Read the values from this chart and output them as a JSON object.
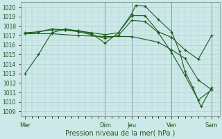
{
  "xlabel": "Pression niveau de la mer( hPa )",
  "ylim": [
    1008.5,
    1020.5
  ],
  "background_color": "#cce8e8",
  "grid_color": "#aacccc",
  "line_color": "#1a5c1a",
  "day_labels": [
    "Mer",
    "Dim",
    "Jeu",
    "Ven",
    "Sam"
  ],
  "day_positions": [
    0,
    3.0,
    4.0,
    5.5,
    7.0
  ],
  "vline_positions": [
    3.0,
    4.0,
    5.5,
    7.0
  ],
  "vline_color": "#446644",
  "lines": [
    {
      "x": [
        0,
        0.5,
        1.0,
        1.5,
        2.0,
        2.5,
        3.0,
        3.5,
        4.0,
        4.15,
        4.5,
        5.0,
        5.5,
        5.8,
        6.0,
        6.3,
        6.6,
        7.0
      ],
      "y": [
        1013,
        1015,
        1017.3,
        1017.7,
        1017.5,
        1017.2,
        1016.2,
        1017.3,
        1019.3,
        1020.2,
        1020.1,
        1018.7,
        1017.4,
        1015.3,
        1013.2,
        1011.5,
        1009.5,
        1011.5
      ]
    },
    {
      "x": [
        0,
        0.5,
        1.0,
        1.5,
        2.0,
        2.5,
        3.0,
        3.5,
        4.0,
        4.5,
        5.0,
        5.5,
        6.0,
        6.5,
        7.0
      ],
      "y": [
        1017.3,
        1017.4,
        1017.6,
        1017.6,
        1017.5,
        1017.3,
        1017.1,
        1017.3,
        1019.1,
        1019.1,
        1017.4,
        1016.8,
        1015.5,
        1014.5,
        1017.0
      ]
    },
    {
      "x": [
        0,
        0.5,
        1.0,
        1.5,
        2.0,
        2.5,
        3.0,
        3.5,
        4.0,
        4.5,
        5.0,
        5.5,
        6.0,
        6.5,
        7.0
      ],
      "y": [
        1017.2,
        1017.4,
        1017.7,
        1017.6,
        1017.4,
        1017.1,
        1016.7,
        1017.0,
        1018.6,
        1018.5,
        1017.3,
        1015.2,
        1012.8,
        1010.2,
        1011.3
      ]
    },
    {
      "x": [
        0,
        1.0,
        2.0,
        3.0,
        4.0,
        5.0,
        5.5,
        6.0,
        6.5,
        7.0
      ],
      "y": [
        1017.2,
        1017.2,
        1017.0,
        1016.9,
        1016.9,
        1016.3,
        1015.5,
        1014.6,
        1012.3,
        1011.3
      ]
    }
  ],
  "ytick_values": [
    1009,
    1010,
    1011,
    1012,
    1013,
    1014,
    1015,
    1016,
    1017,
    1018,
    1019,
    1020
  ],
  "xlabel_fontsize": 7,
  "ylabel_fontsize": 5.5,
  "xlabel_color": "#1a5c1a",
  "tick_label_color": "#1a5c1a",
  "x_tick_fontsize": 6,
  "y_tick_fontsize": 5.5
}
